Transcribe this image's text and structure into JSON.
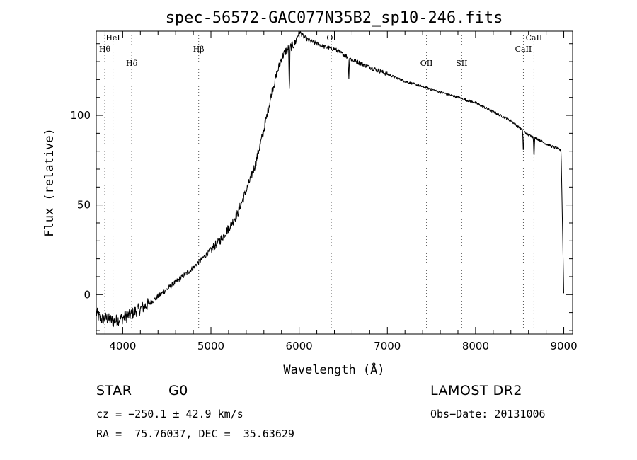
{
  "chart_data": {
    "type": "line",
    "title": "spec-56572-GAC077N35B2_sp10-246.fits",
    "xlabel": "Wavelength (Å)",
    "ylabel": "Flux (relative)",
    "xlim": [
      3700,
      9100
    ],
    "ylim": [
      -22,
      147
    ],
    "x_ticks": [
      4000,
      5000,
      6000,
      7000,
      8000,
      9000
    ],
    "y_ticks": [
      0,
      50,
      100
    ],
    "grid": false,
    "series": [
      {
        "x": [
          3700,
          3750,
          3800,
          3850,
          3900,
          3950,
          4000,
          4050,
          4100,
          4150,
          4200,
          4300,
          4400,
          4500,
          4600,
          4700,
          4800,
          4900,
          5000,
          5100,
          5200,
          5300,
          5400,
          5500,
          5600,
          5700,
          5800,
          5850,
          5900,
          5950,
          6000,
          6050,
          6100,
          6200,
          6300,
          6400,
          6500,
          6600,
          6700,
          6800,
          7000,
          7200,
          7400,
          7600,
          7800,
          8000,
          8200,
          8400,
          8500,
          8600,
          8700,
          8800,
          8900,
          8950,
          8970,
          8985,
          9000
        ],
        "y": [
          -10,
          -14,
          -13,
          -14,
          -15,
          -14,
          -13,
          -12,
          -11,
          -9,
          -8,
          -5,
          -1,
          3,
          7,
          11,
          15,
          20,
          25,
          30,
          37,
          45,
          58,
          72,
          92,
          115,
          132,
          136,
          138,
          140,
          147,
          144,
          142,
          140,
          138,
          137,
          134,
          131,
          129,
          127,
          123,
          119,
          116,
          113,
          110,
          107,
          102,
          97,
          93,
          89,
          87,
          84,
          82,
          81,
          80,
          40,
          1
        ]
      }
    ],
    "lines": [
      {
        "label": "Hθ",
        "x": 3797
      },
      {
        "label": "HeI",
        "x": 3889
      },
      {
        "label": "Hδ",
        "x": 4102
      },
      {
        "label": "Hβ",
        "x": 4861
      },
      {
        "label": "OI",
        "x": 6364
      },
      {
        "label": "OII",
        "x": 7444
      },
      {
        "label": "SII",
        "x": 7843
      },
      {
        "label": "CaII",
        "x": 8542
      },
      {
        "label": "CaII",
        "x": 8662
      }
    ]
  },
  "info": {
    "class": "STAR",
    "subclass": "G0",
    "survey": "LAMOST DR2",
    "cz": "cz = −250.1 ± 42.9 km/s",
    "obs_date": "Obs−Date: 20131006",
    "radec": "RA =  75.76037, DEC =  35.63629"
  }
}
